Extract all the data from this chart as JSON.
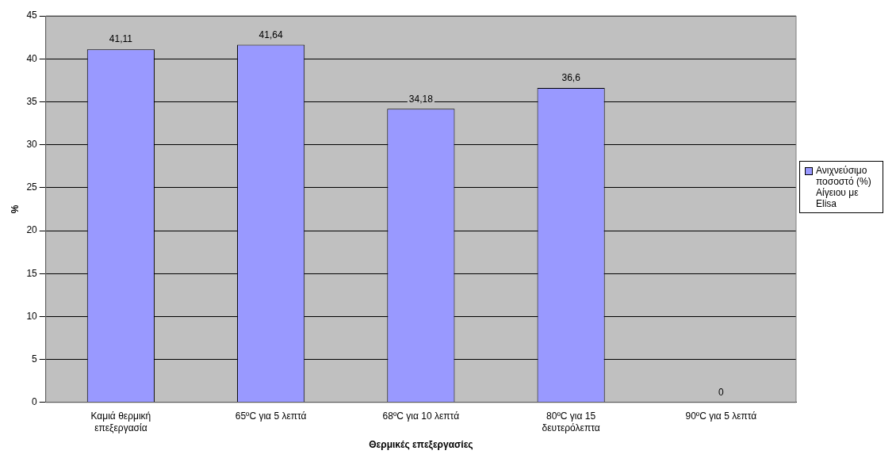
{
  "chart_data": {
    "type": "bar",
    "xlabel": "Θερμικές επεξεργασίες",
    "ylabel": "%",
    "categories": [
      "Καμιά θερμική επεξεργασία",
      "65ºC για 5 λεπτά",
      "68ºC για 10 λεπτά",
      "80ºC για 15 δευτερόλεπτα",
      "90ºC για 5 λεπτά"
    ],
    "series": [
      {
        "name": "Ανιχνεύσιμο ποσοστό (%) Αίγειου με Elisa",
        "color": "#9999ff",
        "values": [
          41.11,
          41.64,
          34.18,
          36.6,
          0
        ],
        "value_labels": [
          "41,11",
          "41,64",
          "34,18",
          "36,6",
          "0"
        ]
      }
    ],
    "ylim": [
      0,
      45
    ],
    "yticks": [
      0,
      5,
      10,
      15,
      20,
      25,
      30,
      35,
      40,
      45
    ],
    "grid": "y",
    "legend": "right"
  }
}
